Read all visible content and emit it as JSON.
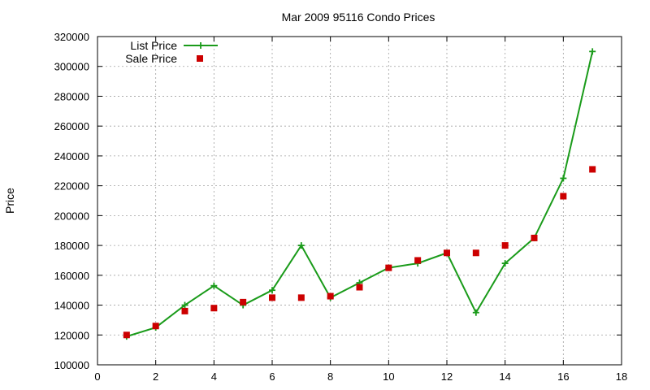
{
  "chart_data": {
    "type": "line",
    "title": "Mar 2009 95116 Condo Prices",
    "xlabel": "",
    "ylabel": "Price",
    "xlim": [
      0,
      18
    ],
    "ylim": [
      100000,
      320000
    ],
    "x_ticks": [
      "0",
      "2",
      "4",
      "6",
      "8",
      "10",
      "12",
      "14",
      "16",
      "18"
    ],
    "y_ticks": [
      "100000",
      "120000",
      "140000",
      "160000",
      "180000",
      "200000",
      "220000",
      "240000",
      "260000",
      "280000",
      "300000",
      "320000"
    ],
    "grid": true,
    "legend_position": "top-left",
    "series": [
      {
        "name": "List Price",
        "style": "line-with-plus-markers",
        "color": "#1a9b1a",
        "x": [
          1,
          2,
          3,
          4,
          5,
          6,
          7,
          8,
          9,
          10,
          11,
          12,
          13,
          14,
          15,
          16,
          17
        ],
        "y": [
          119000,
          125000,
          140000,
          153000,
          140000,
          150000,
          180000,
          145000,
          155000,
          165000,
          168000,
          175000,
          135000,
          168000,
          185000,
          225000,
          310000
        ]
      },
      {
        "name": "Sale Price",
        "style": "square-markers",
        "color": "#cc0000",
        "x": [
          1,
          2,
          3,
          4,
          5,
          6,
          7,
          8,
          9,
          10,
          11,
          12,
          13,
          14,
          15,
          16,
          17
        ],
        "y": [
          120000,
          126000,
          136000,
          138000,
          142000,
          145000,
          145000,
          146000,
          152000,
          165000,
          170000,
          175000,
          175000,
          180000,
          185000,
          213000,
          231000
        ]
      }
    ]
  }
}
